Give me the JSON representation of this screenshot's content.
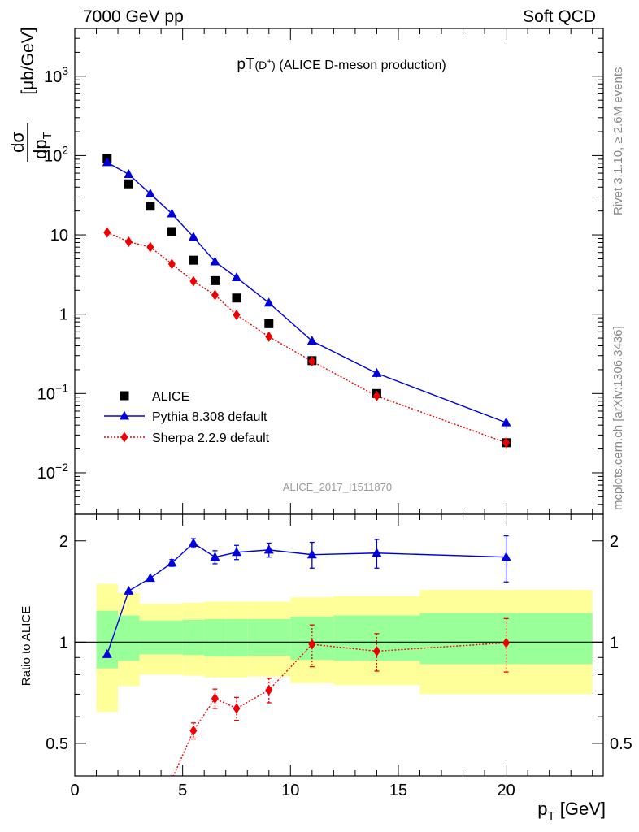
{
  "header": {
    "left": "7000 GeV pp",
    "right": "Soft QCD"
  },
  "side_labels": {
    "rivet": "Rivet 3.1.10, ≥ 2.6M events",
    "mcplots": "mcplots.cern.ch [arXiv:1306.3436]"
  },
  "chart_data": [
    {
      "type": "scatter",
      "panel": "main",
      "title_main": "pT",
      "title_sup": "(D",
      "title_sup_plus": "+",
      "title_close": ")",
      "title_rest": " (ALICE D-meson production)",
      "analysis_id": "ALICE_2017_I1511870",
      "ylabel": "dσ/dp_T [μb/GeV]",
      "ylabel_parts": {
        "num": "dσ",
        "den": "dp",
        "den_sub": "T",
        "unit": "[μb/GeV]"
      },
      "yscale": "log",
      "ylim": [
        0.003,
        4000
      ],
      "xlim": [
        0,
        24.5
      ],
      "y_ticks": [
        {
          "v": 0.01,
          "base": "10",
          "exp": "−2"
        },
        {
          "v": 0.1,
          "base": "10",
          "exp": "−1"
        },
        {
          "v": 1,
          "base": "1",
          "exp": ""
        },
        {
          "v": 10,
          "base": "10",
          "exp": ""
        },
        {
          "v": 100,
          "base": "10",
          "exp": "2"
        },
        {
          "v": 1000,
          "base": "10",
          "exp": "3"
        }
      ],
      "legend_position": "lower-left",
      "series": [
        {
          "name": "ALICE",
          "color": "#000000",
          "marker": "square",
          "x": [
            1.5,
            2.5,
            3.5,
            4.5,
            5.5,
            6.5,
            7.5,
            9,
            11,
            14,
            20
          ],
          "y": [
            92,
            44,
            23,
            11,
            4.8,
            2.65,
            1.6,
            0.76,
            0.26,
            0.1,
            0.024
          ]
        },
        {
          "name": "Pythia 8.308 default",
          "color": "#0000dd",
          "marker": "triangle",
          "line": "solid",
          "x": [
            1.5,
            2.5,
            3.5,
            4.5,
            5.5,
            6.5,
            7.5,
            9,
            11,
            14,
            20
          ],
          "y": [
            82,
            58,
            33,
            18.5,
            9.4,
            4.6,
            2.9,
            1.39,
            0.46,
            0.18,
            0.043
          ],
          "yerr": [
            0,
            0,
            0,
            0,
            0,
            0,
            0,
            0,
            0.04,
            0.02,
            0.007
          ]
        },
        {
          "name": "Sherpa 2.2.9 default",
          "color": "#ee0000",
          "marker": "diamond",
          "line": "dotted",
          "x": [
            1.5,
            2.5,
            3.5,
            4.5,
            5.5,
            6.5,
            7.5,
            9,
            11,
            14,
            20
          ],
          "y": [
            10.7,
            8.2,
            7.0,
            4.3,
            2.6,
            1.75,
            0.98,
            0.52,
            0.255,
            0.093,
            0.024
          ],
          "yerr": [
            0,
            0,
            0,
            0,
            0,
            0,
            0,
            0.03,
            0.02,
            0.01,
            0.004
          ]
        }
      ]
    },
    {
      "type": "scatter",
      "panel": "ratio",
      "ylabel": "Ratio to ALICE",
      "yscale": "log",
      "ylim": [
        0.4,
        2.4
      ],
      "xlim": [
        0,
        24.5
      ],
      "y_ticks": [
        {
          "v": 0.5,
          "label": "0.5"
        },
        {
          "v": 1,
          "label": "1"
        },
        {
          "v": 2,
          "label": "2"
        }
      ],
      "x_ticks": [
        0,
        5,
        10,
        15,
        20
      ],
      "xlabel_main": "p",
      "xlabel_sub": "T",
      "xlabel_unit": " [GeV]",
      "bands": [
        {
          "x0": 1,
          "x1": 2,
          "y_in": [
            0.835,
            1.24
          ],
          "y_out": [
            0.62,
            1.49
          ]
        },
        {
          "x0": 2,
          "x1": 3,
          "y_in": [
            0.88,
            1.2
          ],
          "y_out": [
            0.74,
            1.4
          ]
        },
        {
          "x0": 3,
          "x1": 5,
          "y_in": [
            0.92,
            1.16
          ],
          "y_out": [
            0.8,
            1.3
          ]
        },
        {
          "x0": 5,
          "x1": 6,
          "y_in": [
            0.915,
            1.165
          ],
          "y_out": [
            0.795,
            1.31
          ]
        },
        {
          "x0": 6,
          "x1": 7,
          "y_in": [
            0.905,
            1.17
          ],
          "y_out": [
            0.785,
            1.32
          ]
        },
        {
          "x0": 7,
          "x1": 8,
          "y_in": [
            0.905,
            1.17
          ],
          "y_out": [
            0.785,
            1.32
          ]
        },
        {
          "x0": 8,
          "x1": 10,
          "y_in": [
            0.91,
            1.17
          ],
          "y_out": [
            0.79,
            1.32
          ]
        },
        {
          "x0": 10,
          "x1": 12,
          "y_in": [
            0.885,
            1.19
          ],
          "y_out": [
            0.755,
            1.36
          ]
        },
        {
          "x0": 12,
          "x1": 16,
          "y_in": [
            0.88,
            1.2
          ],
          "y_out": [
            0.745,
            1.37
          ]
        },
        {
          "x0": 16,
          "x1": 24,
          "y_in": [
            0.86,
            1.22
          ],
          "y_out": [
            0.7,
            1.43
          ]
        }
      ],
      "series": [
        {
          "name": "Pythia 8.308 default",
          "color": "#0000dd",
          "marker": "triangle",
          "line": "solid",
          "x": [
            1.5,
            2.5,
            3.5,
            4.5,
            5.5,
            6.5,
            7.5,
            9,
            11,
            14,
            20
          ],
          "y": [
            0.92,
            1.42,
            1.55,
            1.72,
            1.97,
            1.79,
            1.85,
            1.88,
            1.82,
            1.84,
            1.79
          ],
          "yerr": [
            0,
            0,
            0,
            0.04,
            0.06,
            0.08,
            0.09,
            0.09,
            0.16,
            0.18,
            0.28
          ]
        },
        {
          "name": "Sherpa 2.2.9 default",
          "color": "#ee0000",
          "marker": "diamond",
          "line": "dotted",
          "x": [
            4.5,
            5.5,
            6.5,
            7.5,
            9,
            11,
            14,
            20
          ],
          "y": [
            0.39,
            0.545,
            0.68,
            0.635,
            0.72,
            0.985,
            0.94,
            0.995
          ],
          "yerr": [
            0,
            0.03,
            0.045,
            0.05,
            0.06,
            0.14,
            0.12,
            0.18
          ]
        }
      ]
    }
  ]
}
